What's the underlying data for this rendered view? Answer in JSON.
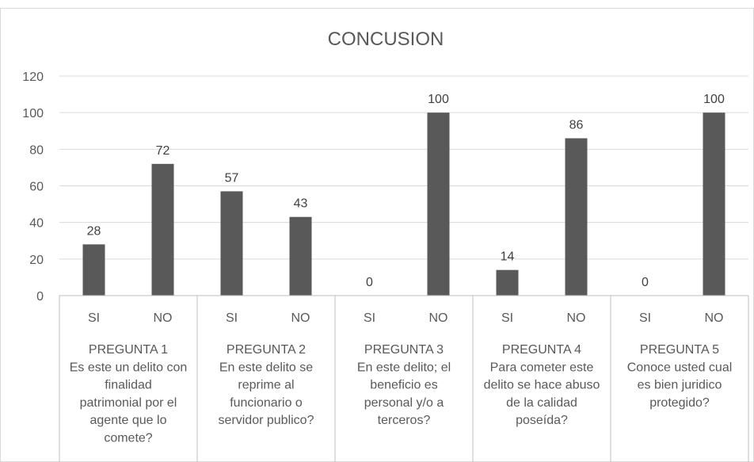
{
  "chart_data": {
    "type": "bar",
    "title": "CONCUSION",
    "xlabel": "",
    "ylabel": "",
    "ylim": [
      0,
      120
    ],
    "yticks": [
      0,
      20,
      40,
      60,
      80,
      100,
      120
    ],
    "grid": true,
    "legend": "none",
    "bar_color": "#595959",
    "groups": [
      {
        "label_lines": [
          "PREGUNTA 1",
          "Es este un delito con",
          "finalidad",
          "patrimonial por el",
          "agente que lo",
          "comete?"
        ],
        "categories": [
          "SI",
          "NO"
        ],
        "values": [
          28,
          72
        ]
      },
      {
        "label_lines": [
          "PREGUNTA 2",
          "En este delito se",
          "reprime al",
          "funcionario o",
          "servidor publico?"
        ],
        "categories": [
          "SI",
          "NO"
        ],
        "values": [
          57,
          43
        ]
      },
      {
        "label_lines": [
          "PREGUNTA 3",
          "En este delito; el",
          "beneficio es",
          "personal y/o a",
          "terceros?"
        ],
        "categories": [
          "SI",
          "NO"
        ],
        "values": [
          0,
          100
        ]
      },
      {
        "label_lines": [
          "PREGUNTA 4",
          "Para cometer este",
          "delito se hace abuso",
          "de la calidad",
          "poseída?"
        ],
        "categories": [
          "SI",
          "NO"
        ],
        "values": [
          14,
          86
        ]
      },
      {
        "label_lines": [
          "PREGUNTA 5",
          "Conoce usted cual",
          "es bien juridico",
          "protegido?"
        ],
        "categories": [
          "SI",
          "NO"
        ],
        "values": [
          0,
          100
        ]
      }
    ]
  }
}
